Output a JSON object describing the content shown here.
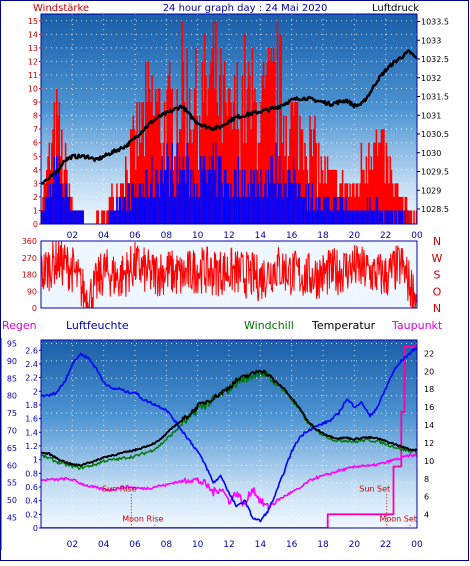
{
  "header": {
    "left_label": "Windstärke",
    "title": "24 hour graph day : 24 Mai 2020",
    "right_label": "Luftdruck"
  },
  "colors": {
    "wind_red": "#ff0000",
    "wind_blue": "#0000ff",
    "pressure": "#000000",
    "humidity": "#0000ff",
    "windchill": "#007700",
    "temperature": "#000000",
    "dewpoint": "#ff00ff",
    "rain": "#ff00aa",
    "frame": "#0000aa",
    "sky_top": "#1c63b0",
    "sky_bottom": "#eef6ff",
    "direction_bg": "#eef6ff",
    "red_label": "#cc0000",
    "blue_label": "#0000aa",
    "magenta_label": "#dd00dd"
  },
  "chart_data": [
    {
      "id": "wind-pressure",
      "type": "line",
      "title": "24 hour graph day : 24 Mai 2020",
      "x_ticks": [
        "02",
        "04",
        "06",
        "08",
        "10",
        "12",
        "14",
        "16",
        "18",
        "20",
        "22",
        "00"
      ],
      "left_axis": {
        "label": "Windstärke",
        "ticks": [
          "0",
          "1",
          "2",
          "3",
          "4",
          "5",
          "6",
          "7",
          "8",
          "9",
          "10",
          "11",
          "12",
          "13",
          "14",
          "15"
        ],
        "ylim": [
          0,
          15.5
        ]
      },
      "right_axis": {
        "label": "Luftdruck",
        "ticks": [
          "1028.5",
          "1029",
          "1029.5",
          "1030",
          "1030.5",
          "1031",
          "1031.5",
          "1032",
          "1032.5",
          "1033",
          "1033.5"
        ],
        "ylim": [
          1028.1,
          1033.7
        ]
      },
      "series": [
        {
          "name": "Luftdruck",
          "axis": "right",
          "x": [
            0,
            0.5,
            1,
            1.5,
            2,
            2.5,
            3,
            3.5,
            4,
            4.5,
            5,
            5.5,
            6,
            6.5,
            7,
            7.5,
            8,
            8.5,
            9,
            9.5,
            10,
            10.5,
            11,
            11.5,
            12,
            12.5,
            13,
            13.5,
            14,
            14.5,
            15,
            15.5,
            16,
            16.5,
            17,
            17.5,
            18,
            18.5,
            19,
            19.5,
            20,
            20.5,
            21,
            21.5,
            22,
            22.5,
            23,
            23.5,
            24
          ],
          "y": [
            1029.2,
            1029.3,
            1029.5,
            1029.8,
            1029.9,
            1029.9,
            1029.9,
            1029.8,
            1029.9,
            1030.0,
            1030.1,
            1030.2,
            1030.4,
            1030.6,
            1030.8,
            1030.95,
            1031.05,
            1031.15,
            1031.25,
            1031.0,
            1030.8,
            1030.7,
            1030.65,
            1030.7,
            1030.85,
            1030.95,
            1031.0,
            1031.05,
            1031.1,
            1031.15,
            1031.2,
            1031.3,
            1031.4,
            1031.45,
            1031.45,
            1031.4,
            1031.35,
            1031.3,
            1031.35,
            1031.4,
            1031.25,
            1031.3,
            1031.6,
            1031.95,
            1032.2,
            1032.4,
            1032.55,
            1032.7,
            1032.5
          ]
        },
        {
          "name": "Windböen",
          "axis": "left",
          "x": [
            0,
            1,
            2,
            3,
            4,
            5,
            6,
            7,
            8,
            9,
            10,
            11,
            12,
            13,
            14,
            15,
            16,
            17,
            18,
            19,
            20,
            21,
            22,
            23,
            24
          ],
          "y": [
            2,
            10,
            2,
            0,
            1,
            4,
            8,
            12,
            10,
            14,
            12,
            15,
            10,
            13,
            11,
            14,
            10,
            9,
            5,
            4,
            3,
            9,
            6,
            2,
            1
          ]
        },
        {
          "name": "Windgeschwindigkeit",
          "axis": "left",
          "x": [
            0,
            1,
            2,
            3,
            4,
            5,
            6,
            7,
            8,
            9,
            10,
            11,
            12,
            13,
            14,
            15,
            16,
            17,
            18,
            19,
            20,
            21,
            22,
            23,
            24
          ],
          "y": [
            1,
            5,
            2,
            0,
            0,
            2,
            3,
            4,
            5,
            5,
            4,
            5,
            4,
            4,
            4,
            5,
            4,
            3,
            2,
            2,
            1,
            2,
            1,
            1,
            0
          ]
        }
      ]
    },
    {
      "id": "wind-direction",
      "type": "scatter",
      "x_ticks": [
        "02",
        "04",
        "06",
        "08",
        "10",
        "12",
        "14",
        "16",
        "18",
        "20",
        "22",
        "00"
      ],
      "left_axis": {
        "ticks": [
          "0",
          "90",
          "180",
          "270",
          "360"
        ],
        "ylim": [
          0,
          360
        ]
      },
      "right_axis": {
        "ticks": [
          "N",
          "W",
          "S",
          "O",
          "N"
        ]
      },
      "series": [
        {
          "name": "Windrichtung",
          "x": [
            0,
            1,
            2,
            3,
            4,
            5,
            6,
            7,
            8,
            9,
            10,
            11,
            12,
            13,
            14,
            15,
            16,
            17,
            18,
            19,
            20,
            21,
            22,
            23,
            24
          ],
          "y": [
            180,
            260,
            210,
            40,
            200,
            160,
            230,
            180,
            200,
            170,
            210,
            190,
            200,
            180,
            160,
            220,
            190,
            170,
            180,
            200,
            220,
            190,
            170,
            230,
            40
          ]
        }
      ]
    },
    {
      "id": "temperature-humidity",
      "type": "line",
      "legend": [
        "Regen",
        "Luftfeuchte",
        "Windchill",
        "Temperatur",
        "Taupunkt"
      ],
      "x_ticks": [
        "02",
        "04",
        "06",
        "08",
        "10",
        "12",
        "14",
        "16",
        "18",
        "20",
        "22",
        "00"
      ],
      "axes": {
        "humidity": {
          "label": "Luftfeuchte",
          "ticks": [
            "45",
            "50",
            "55",
            "60",
            "65",
            "70",
            "75",
            "80",
            "85",
            "90",
            "95"
          ],
          "ylim": [
            42,
            96
          ]
        },
        "rain": {
          "label": "Regen",
          "ticks": [
            "0",
            "0.2",
            "0.4",
            "0.6",
            "0.8",
            "1",
            "1.2",
            "1.4",
            "1.6",
            "1.8",
            "2",
            "2.2",
            "2.4",
            "2.6"
          ],
          "ylim": [
            0,
            2.75
          ]
        },
        "temperature": {
          "label": "Temperatur",
          "ticks": [
            "4",
            "6",
            "8",
            "10",
            "12",
            "14",
            "16",
            "18",
            "20",
            "22"
          ],
          "ylim": [
            2.5,
            23.5
          ]
        }
      },
      "series": [
        {
          "name": "Luftfeuchte",
          "axis": "humidity",
          "x": [
            0,
            0.5,
            1,
            1.5,
            2,
            2.5,
            3,
            3.5,
            4,
            4.5,
            5,
            5.5,
            6,
            6.5,
            7,
            7.5,
            8,
            8.5,
            9,
            9.5,
            10,
            10.5,
            11,
            11.5,
            12,
            12.5,
            13,
            13.5,
            14,
            14.5,
            15,
            15.5,
            16,
            16.5,
            17,
            17.5,
            18,
            18.5,
            19,
            19.5,
            20,
            20.5,
            21,
            21.5,
            22,
            22.5,
            23,
            23.5,
            24
          ],
          "y": [
            80,
            80,
            81,
            84,
            89,
            92,
            91,
            88,
            84,
            82,
            82,
            81,
            81,
            79,
            78,
            77,
            76,
            73,
            70,
            67,
            64,
            60,
            55,
            57,
            52,
            48,
            50,
            45,
            44,
            47,
            52,
            58,
            64,
            68,
            70,
            71,
            72,
            73,
            75,
            79,
            77,
            78,
            74,
            77,
            82,
            87,
            90,
            92,
            94
          ]
        },
        {
          "name": "Temperatur",
          "axis": "temperature",
          "x": [
            0,
            0.5,
            1,
            1.5,
            2,
            2.5,
            3,
            3.5,
            4,
            4.5,
            5,
            5.5,
            6,
            6.5,
            7,
            7.5,
            8,
            8.5,
            9,
            9.5,
            10,
            10.5,
            11,
            11.5,
            12,
            12.5,
            13,
            13.5,
            14,
            14.5,
            15,
            15.5,
            16,
            16.5,
            17,
            17.5,
            18,
            18.5,
            19,
            19.5,
            20,
            20.5,
            21,
            21.5,
            22,
            22.5,
            23,
            23.5,
            24
          ],
          "y": [
            10.9,
            10.8,
            10.3,
            9.9,
            9.6,
            9.5,
            9.8,
            10.0,
            10.4,
            10.6,
            10.8,
            11.0,
            11.2,
            11.5,
            11.8,
            12.2,
            13.0,
            13.9,
            14.5,
            15.2,
            16.1,
            16.6,
            17.0,
            17.6,
            18.2,
            19.0,
            19.4,
            19.7,
            20.2,
            19.6,
            18.8,
            18.1,
            17.0,
            15.9,
            14.5,
            13.6,
            13.1,
            12.7,
            12.5,
            12.6,
            12.4,
            12.6,
            12.6,
            12.5,
            12.2,
            11.9,
            11.6,
            11.3,
            11.2
          ]
        },
        {
          "name": "Windchill",
          "axis": "temperature",
          "x": [
            0,
            0.5,
            1,
            1.5,
            2,
            2.5,
            3,
            3.5,
            4,
            4.5,
            5,
            5.5,
            6,
            6.5,
            7,
            7.5,
            8,
            8.5,
            9,
            9.5,
            10,
            10.5,
            11,
            11.5,
            12,
            12.5,
            13,
            13.5,
            14,
            14.5,
            15,
            15.5,
            16,
            16.5,
            17,
            17.5,
            18,
            18.5,
            19,
            19.5,
            20,
            20.5,
            21,
            21.5,
            22,
            22.5,
            23,
            23.5,
            24
          ],
          "y": [
            10.6,
            10.3,
            9.9,
            9.6,
            9.4,
            9.2,
            9.4,
            9.6,
            10.0,
            10.1,
            10.2,
            10.4,
            10.5,
            10.8,
            11.1,
            11.6,
            12.4,
            13.2,
            14.1,
            14.8,
            15.8,
            16.3,
            16.8,
            17.4,
            18.0,
            18.8,
            19.2,
            19.5,
            20.0,
            19.4,
            18.6,
            17.9,
            16.8,
            15.7,
            14.3,
            13.4,
            12.9,
            12.5,
            12.2,
            12.3,
            12.1,
            12.3,
            12.3,
            12.2,
            11.9,
            11.6,
            11.3,
            11.1,
            11.0
          ]
        },
        {
          "name": "Taupunkt",
          "axis": "temperature",
          "x": [
            0,
            0.5,
            1,
            1.5,
            2,
            2.5,
            3,
            3.5,
            4,
            4.5,
            5,
            5.5,
            6,
            6.5,
            7,
            7.5,
            8,
            8.5,
            9,
            9.5,
            10,
            10.5,
            11,
            11.5,
            12,
            12.5,
            13,
            13.5,
            14,
            14.5,
            15,
            15.5,
            16,
            16.5,
            17,
            17.5,
            18,
            18.5,
            19,
            19.5,
            20,
            20.5,
            21,
            21.5,
            22,
            22.5,
            23,
            23.5,
            24
          ],
          "y": [
            7.8,
            7.9,
            7.9,
            8.0,
            7.9,
            7.5,
            7.2,
            7.0,
            6.8,
            6.8,
            7.0,
            7.1,
            7.0,
            6.9,
            7.0,
            7.2,
            7.3,
            7.6,
            7.7,
            8.0,
            7.8,
            7.4,
            6.5,
            7.0,
            5.5,
            6.5,
            5.0,
            7.0,
            5.5,
            4.8,
            5.5,
            6.0,
            6.5,
            6.9,
            7.6,
            8.1,
            8.3,
            8.6,
            8.9,
            9.1,
            9.3,
            9.5,
            9.4,
            9.6,
            9.8,
            10.1,
            10.3,
            10.6,
            10.6
          ]
        },
        {
          "name": "Regen",
          "axis": "rain",
          "x": [
            0,
            18.3,
            18.3,
            22.5,
            22.5,
            23.0,
            23.0,
            23.2,
            23.2,
            24
          ],
          "y": [
            0,
            0,
            0.2,
            0.2,
            0.9,
            0.9,
            1.7,
            1.7,
            2.65,
            2.65
          ]
        }
      ],
      "annotations": [
        {
          "text": "Sun Rise",
          "x": 5.0,
          "y_temp": 6.6
        },
        {
          "text": "Moon Rise",
          "x": 6.5,
          "y_temp": 3.2
        },
        {
          "text": "Sun Set",
          "x": 21.3,
          "y_temp": 6.6
        },
        {
          "text": "Moon Set",
          "x": 22.8,
          "y_temp": 3.2
        }
      ]
    }
  ]
}
